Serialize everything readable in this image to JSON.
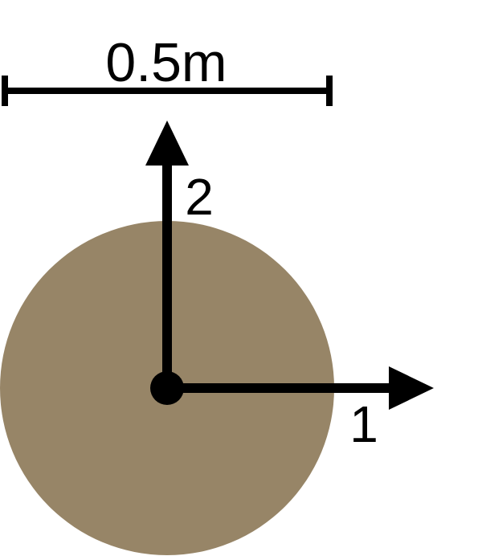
{
  "scale_bar": {
    "label": "0.5m"
  },
  "axes": {
    "axis_1_label": "1",
    "axis_2_label": "2"
  },
  "colors": {
    "disk_fill": "#978567",
    "ink": "#000000",
    "background": "#ffffff"
  }
}
